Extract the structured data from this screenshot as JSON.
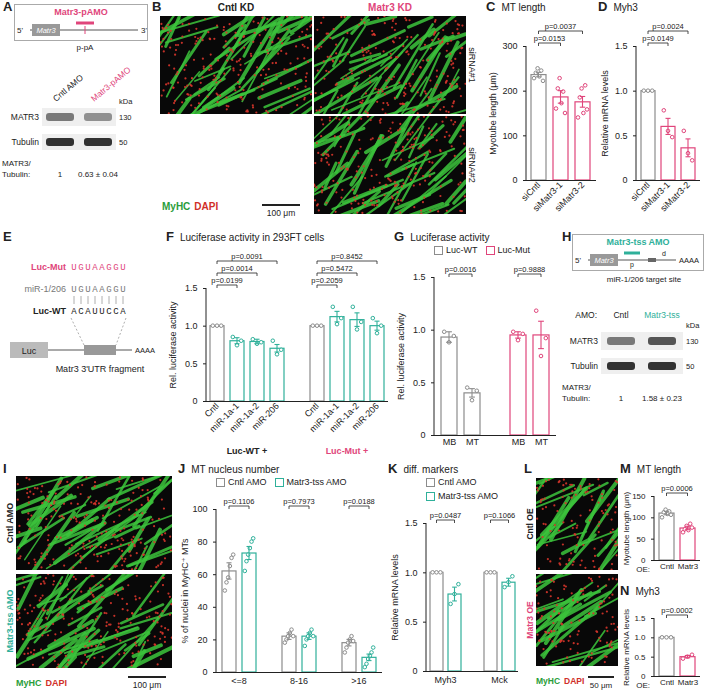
{
  "chart_data": [
    {
      "panel": "C",
      "type": "bar",
      "title": "MT length",
      "ylabel": "Myotube length (μm)",
      "ylim": [
        0,
        300
      ],
      "yticks": [
        0,
        100,
        200,
        300
      ],
      "groups": [
        {
          "categories": [
            "siCntl",
            "siMatr3-1",
            "siMatr3-2"
          ],
          "colors": [
            "#8c8c8c",
            "#e0457b",
            "#e0457b"
          ],
          "values": [
            236,
            186,
            175
          ],
          "errors": [
            5,
            14,
            12
          ],
          "points": [
            [
              228,
              240,
              250,
              232,
              245,
              222
            ],
            [
              160,
              205,
              228,
              172,
              198,
              150
            ],
            [
              140,
              185,
              205,
              150,
              212,
              158
            ]
          ],
          "annotations": [
            {
              "between": [
                "siCntl",
                "siMatr3-1"
              ],
              "text": "p=0.0153"
            },
            {
              "between": [
                "siCntl",
                "siMatr3-2"
              ],
              "text": "p=0.0037"
            }
          ]
        }
      ]
    },
    {
      "panel": "D",
      "type": "bar",
      "title": "Myh3",
      "ylabel": "Relative mRNA levels",
      "ylim": [
        0,
        1.5
      ],
      "yticks": [
        0,
        0.5,
        {
          "value": 1,
          "label": "1.0"
        },
        1.5
      ],
      "groups": [
        {
          "categories": [
            "siCntl",
            "siMatr3-1",
            "siMatr3-2"
          ],
          "colors": [
            "#8c8c8c",
            "#e0457b",
            "#e0457b"
          ],
          "values": [
            1,
            0.6,
            0.36
          ],
          "errors": [
            0,
            0.09,
            0.1
          ],
          "points": [
            [
              1,
              1,
              1
            ],
            [
              0.78,
              0.55,
              0.48
            ],
            [
              0.55,
              0.3,
              0.22
            ]
          ],
          "annotations": [
            {
              "between": [
                "siCntl",
                "siMatr3-1"
              ],
              "text": "p=0.0149"
            },
            {
              "between": [
                "siCntl",
                "siMatr3-2"
              ],
              "text": "p=0.0024"
            }
          ]
        }
      ]
    },
    {
      "panel": "F",
      "type": "bar",
      "title": "Luciferase activity in 293FT cells",
      "ylabel": "Rel. luciferase activity",
      "ylim": [
        0,
        1.5
      ],
      "yticks": [
        0,
        0.5,
        {
          "value": 1,
          "label": "1.0"
        },
        1.5
      ],
      "groups": [
        {
          "name": "Luc-WT +",
          "color": "#222222",
          "categories": [
            "Cntl",
            "miR-1a-1",
            "miR-1a-2",
            "miR-206"
          ],
          "colors": [
            "#8c8c8c",
            "#2fb09a",
            "#2fb09a",
            "#2fb09a"
          ],
          "values": [
            1,
            0.8,
            0.79,
            0.7
          ],
          "errors": [
            0,
            0.04,
            0.03,
            0.05
          ],
          "points": [
            [
              1,
              1,
              1
            ],
            [
              0.85,
              0.74,
              0.8
            ],
            [
              0.82,
              0.76,
              0.78
            ],
            [
              0.8,
              0.62,
              0.68
            ]
          ],
          "annotations": [
            {
              "between": [
                "Cntl",
                "miR-1a-1"
              ],
              "text": "p=0.0199"
            },
            {
              "between": [
                "Cntl",
                "miR-1a-2"
              ],
              "text": "p=0.0014"
            },
            {
              "between": [
                "Cntl",
                "miR-206"
              ],
              "text": "p=0.0091"
            }
          ]
        },
        {
          "name": "Luc-Mut +",
          "color": "#e0457b",
          "categories": [
            "Cntl",
            "miR-1a-1",
            "miR-1a-2",
            "miR-206"
          ],
          "colors": [
            "#8c8c8c",
            "#2fb09a",
            "#2fb09a",
            "#2fb09a"
          ],
          "values": [
            1,
            1.12,
            1.08,
            1.0
          ],
          "errors": [
            0,
            0.07,
            0.09,
            0.06
          ],
          "points": [
            [
              1,
              1,
              1
            ],
            [
              1.25,
              1.02,
              1.1
            ],
            [
              1.25,
              0.95,
              1.05
            ],
            [
              1.1,
              0.9,
              1.0
            ]
          ],
          "annotations": [
            {
              "between": [
                "Cntl",
                "miR-1a-1"
              ],
              "text": "p=0.2059"
            },
            {
              "between": [
                "Cntl",
                "miR-1a-2"
              ],
              "text": "p=0.5472"
            },
            {
              "between": [
                "Cntl",
                "miR-206"
              ],
              "text": "p=0.8452"
            }
          ]
        }
      ]
    },
    {
      "panel": "G",
      "type": "bar",
      "title": "Luciferase activity",
      "ylabel": "Rel. luciferase activity",
      "ylim": [
        0,
        1.5
      ],
      "yticks": [
        0,
        0.5,
        {
          "value": 1,
          "label": "1.0"
        },
        1.5
      ],
      "legend": "top",
      "groups": [
        {
          "name": "Luc-WT",
          "color": "#8c8c8c",
          "categories": [
            "MB",
            "MT"
          ],
          "colors": [
            "#8c8c8c",
            "#8c8c8c"
          ],
          "values": [
            0.93,
            0.4
          ],
          "errors": [
            0.05,
            0.04
          ],
          "points": [
            [
              0.98,
              0.88,
              0.94
            ],
            [
              0.45,
              0.33,
              0.42
            ]
          ],
          "annotations": [
            {
              "between": [
                "MB",
                "MT"
              ],
              "text": "p=0.0016"
            }
          ]
        },
        {
          "name": "Luc-Mut",
          "color": "#e0457b",
          "categories": [
            "MB",
            "MT"
          ],
          "colors": [
            "#e0457b",
            "#e0457b"
          ],
          "values": [
            0.95,
            0.95
          ],
          "errors": [
            0.03,
            0.13
          ],
          "points": [
            [
              0.98,
              0.9,
              0.96
            ],
            [
              1.18,
              0.75,
              0.92
            ]
          ],
          "annotations": [
            {
              "between": [
                "MB",
                "MT"
              ],
              "text": "p=0.9888"
            }
          ]
        }
      ]
    },
    {
      "panel": "J",
      "type": "bar",
      "title": "MT nucleus number",
      "ylabel": "% of nuclei in MyHC⁺ MTs",
      "ylim": [
        0,
        100
      ],
      "yticks": [
        0,
        20,
        40,
        60,
        80,
        100
      ],
      "legend": "top",
      "categories": [
        "<=8",
        "8-16",
        ">16"
      ],
      "series": [
        {
          "name": "Cntl AMO",
          "color": "#8c8c8c",
          "values": [
            62,
            22,
            18
          ],
          "errors": [
            5,
            2,
            2
          ],
          "points": [
            [
              50,
              55,
              58,
              65,
              70,
              72
            ],
            [
              18,
              20,
              22,
              24,
              26,
              22
            ],
            [
              12,
              15,
              18,
              20,
              22,
              19
            ]
          ]
        },
        {
          "name": "Matr3-tss AMO",
          "color": "#2fb09a",
          "values": [
            73,
            22,
            9
          ],
          "errors": [
            4,
            2,
            2
          ],
          "points": [
            [
              62,
              68,
              72,
              76,
              80,
              82
            ],
            [
              16,
              20,
              22,
              24,
              26,
              22
            ],
            [
              3,
              5,
              8,
              10,
              12,
              15
            ]
          ]
        }
      ],
      "annotations": [
        {
          "category": "<=8",
          "text": "p=0.1106"
        },
        {
          "category": "8-16",
          "text": "p=0.7973"
        },
        {
          "category": ">16",
          "text": "p=0.0188"
        }
      ]
    },
    {
      "panel": "K",
      "type": "bar",
      "title": "diff. markers",
      "ylabel": "Relative mRNA levels",
      "ylim": [
        0,
        1.5
      ],
      "yticks": [
        0,
        0.5,
        {
          "value": 1,
          "label": "1.0"
        },
        1.5
      ],
      "legend": "top",
      "categories": [
        "Myh3",
        "Mck"
      ],
      "series": [
        {
          "name": "Cntl AMO",
          "color": "#8c8c8c",
          "values": [
            1,
            1
          ],
          "errors": [
            0,
            0
          ],
          "points": [
            [
              1,
              1,
              1
            ],
            [
              1,
              1,
              1
            ]
          ]
        },
        {
          "name": "Matr3-tss AMO",
          "color": "#2fb09a",
          "values": [
            0.78,
            0.9
          ],
          "errors": [
            0.07,
            0.04
          ],
          "points": [
            [
              0.68,
              0.78,
              0.88
            ],
            [
              0.85,
              0.9,
              0.96
            ]
          ]
        }
      ],
      "annotations": [
        {
          "category": "Myh3",
          "text": "p=0.0487"
        },
        {
          "category": "Mck",
          "text": "p=0.1066"
        }
      ]
    },
    {
      "panel": "M",
      "type": "bar",
      "title": "MT length",
      "ylabel": "Myotube length (μm)",
      "xlabel": "OE:",
      "ylim": [
        0,
        150
      ],
      "yticks": [
        0,
        50,
        100,
        150
      ],
      "groups": [
        {
          "categories": [
            "Cntl",
            "Matr3"
          ],
          "colors": [
            "#8c8c8c",
            "#e0457b"
          ],
          "values": [
            110,
            75
          ],
          "errors": [
            4,
            4
          ],
          "points": [
            [
              100,
              112,
              118,
              108,
              114,
              106
            ],
            [
              65,
              72,
              80,
              70,
              85,
              76
            ]
          ],
          "annotations": [
            {
              "between": [
                "Cntl",
                "Matr3"
              ],
              "text": "p=0.0006"
            }
          ]
        }
      ]
    },
    {
      "panel": "N",
      "type": "bar",
      "title": "Myh3",
      "ylabel": "Relative mRNA levels",
      "xlabel": "OE:",
      "ylim": [
        0,
        1.5
      ],
      "yticks": [
        0,
        0.5,
        {
          "value": 1,
          "label": "1.0"
        },
        1.5
      ],
      "groups": [
        {
          "categories": [
            "Cntl",
            "Matr3"
          ],
          "colors": [
            "#8c8c8c",
            "#e0457b"
          ],
          "values": [
            1,
            0.5
          ],
          "errors": [
            0,
            0.03
          ],
          "points": [
            [
              1,
              1,
              1
            ],
            [
              0.45,
              0.5,
              0.55
            ]
          ],
          "annotations": [
            {
              "between": [
                "Cntl",
                "Matr3"
              ],
              "text": "p=0.0002"
            }
          ]
        }
      ]
    }
  ],
  "panels": {
    "A": {
      "letter": "A",
      "construct": "Matr3-pAMO",
      "five_prime": "5'",
      "three_prime": "3'",
      "gene": "Matr3",
      "site": "p-pA",
      "lanes": [
        "Cntl AMO",
        "Matr3-pAMO"
      ],
      "bands": [
        "MATR3",
        "Tubulin"
      ],
      "kda_title": "kDa",
      "kda": [
        130,
        50
      ],
      "ratio_label": "MATR3/ Tubulin:",
      "ratios": [
        "1",
        "0.63 ± 0.04"
      ]
    },
    "B": {
      "letter": "B",
      "columns": [
        "Cntl KD",
        "Matr3 KD"
      ],
      "rows": [
        "siRNA#1",
        "siRNA#2"
      ],
      "stains": [
        "MyHC",
        "DAPI"
      ],
      "scale_bar": "100 μm"
    },
    "E": {
      "letter": "E",
      "mut_name": "Luc-Mut",
      "mut_seq": "UGUAAGGU",
      "mir_name": "miR-1/206",
      "mir_seq": "UGUAAGGU",
      "wt_name": "Luc-WT",
      "wt_seq": "ACAUUCCA",
      "reporter": "Luc",
      "utr": "Matr3 3'UTR fragment",
      "poly_a": "AAAA"
    },
    "H": {
      "letter": "H",
      "construct": "Matr3-tss AMO",
      "five_prime": "5'",
      "gene": "Matr3",
      "sites": [
        "p",
        "d"
      ],
      "poly_a": "AAAA",
      "target": "miR-1/206 target site",
      "lanes_title": "AMO:",
      "lanes": [
        "Cntl",
        "Matr3-tss"
      ],
      "bands": [
        "MATR3",
        "Tubulin"
      ],
      "kda_title": "kDa",
      "kda": [
        130,
        50
      ],
      "ratio_label": "MATR3/ Tubulin:",
      "ratios": [
        "1",
        "1.58 ± 0.23"
      ]
    },
    "I": {
      "letter": "I",
      "rows": [
        "Cntl AMO",
        "Matr3-tss AMO"
      ],
      "stains": [
        "MyHC",
        "DAPI"
      ],
      "scale_bar": "100 μm"
    },
    "L": {
      "letter": "L",
      "rows": [
        "Cntl OE",
        "Matr3 OE"
      ],
      "stains": [
        "MyHC",
        "DAPI"
      ],
      "scale_bar": "50 μm"
    }
  }
}
